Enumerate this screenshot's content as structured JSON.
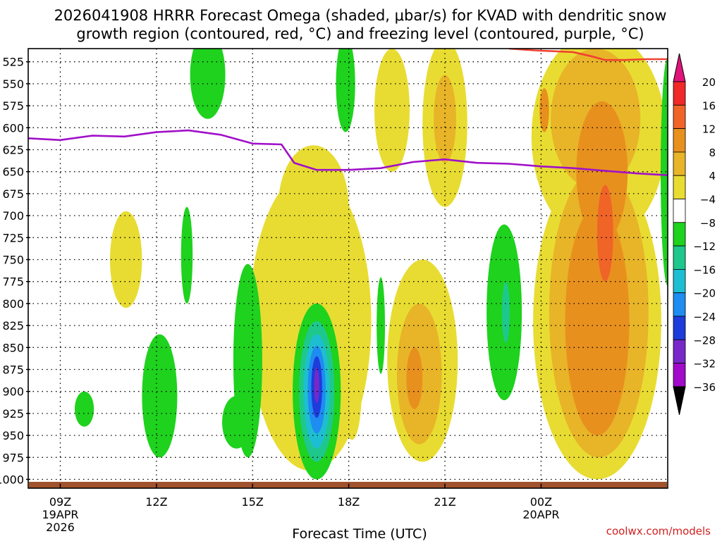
{
  "chart_data": {
    "type": "heatmap",
    "title_lines": [
      "2026041908 HRRR Forecast Omega (shaded, μbar/s) for KVAD with dendritic snow",
      "growth region (contoured, red, °C) and freezing level (contoured, purple, °C)"
    ],
    "xlabel": "Forecast Time (UTC)",
    "credit": "coolwx.com/models",
    "x_range_hours": [
      8.0,
      27.95
    ],
    "x_ticks": [
      {
        "hour": 9,
        "lines": [
          "09Z",
          "19APR",
          "2026"
        ]
      },
      {
        "hour": 12,
        "lines": [
          "12Z"
        ]
      },
      {
        "hour": 15,
        "lines": [
          "15Z"
        ]
      },
      {
        "hour": 18,
        "lines": [
          "18Z"
        ]
      },
      {
        "hour": 21,
        "lines": [
          "21Z"
        ]
      },
      {
        "hour": 24,
        "lines": [
          "00Z",
          "20APR"
        ]
      }
    ],
    "y_ticks_hpa": [
      525,
      550,
      575,
      600,
      625,
      650,
      675,
      700,
      725,
      750,
      775,
      800,
      825,
      850,
      875,
      900,
      925,
      950,
      975,
      1000
    ],
    "y_range_hpa": [
      510,
      1010
    ],
    "grid": true,
    "colorbar": {
      "levels": [
        20,
        16,
        12,
        8,
        4,
        -4,
        -8,
        -12,
        -16,
        -20,
        -24,
        -28,
        -32,
        -36
      ],
      "labels": [
        "20",
        "16",
        "12",
        "8",
        "4",
        "−4",
        "−8",
        "−12",
        "−16",
        "−20",
        "−24",
        "−28",
        "−32",
        "−36"
      ],
      "colors": [
        "#e0147a",
        "#f02828",
        "#f06428",
        "#e8901e",
        "#e8b428",
        "#e8dc32",
        "#ffffff",
        "#1ed21e",
        "#1ec88c",
        "#1ebed2",
        "#1e8cf0",
        "#1e3cdc",
        "#7828c8",
        "#a00ac8",
        "#aaaaaa",
        "#000000"
      ]
    },
    "omega_features": [
      {
        "name": "down-1100-high",
        "level": 4,
        "t": 11.05,
        "p": 750,
        "dt": 0.5,
        "dp": 55
      },
      {
        "name": "down-1930",
        "level": 4,
        "t": 19.35,
        "p": 580,
        "dt": 0.55,
        "dp": 70
      },
      {
        "name": "down-1700-plume",
        "level": 4,
        "t": 16.8,
        "p": 820,
        "dt": 1.9,
        "dp": 170
      },
      {
        "name": "down-1700-top",
        "level": 4,
        "t": 16.9,
        "p": 690,
        "dt": 1.1,
        "dp": 70
      },
      {
        "name": "down-1800",
        "level": 4,
        "t": 18.1,
        "p": 900,
        "dt": 0.3,
        "dp": 55
      },
      {
        "name": "down-2030",
        "level": 4,
        "t": 20.3,
        "p": 865,
        "dt": 1.1,
        "dp": 115
      },
      {
        "name": "down-2030-mid",
        "level": 8,
        "t": 20.2,
        "p": 880,
        "dt": 0.7,
        "dp": 80
      },
      {
        "name": "down-2030-core",
        "level": 12,
        "t": 20.05,
        "p": 885,
        "dt": 0.25,
        "dp": 35
      },
      {
        "name": "down-2100",
        "level": 4,
        "t": 21.0,
        "p": 595,
        "dt": 0.7,
        "dp": 95
      },
      {
        "name": "down-2100-core",
        "level": 8,
        "t": 21.0,
        "p": 590,
        "dt": 0.35,
        "dp": 50
      },
      {
        "name": "down-0030-upper",
        "level": 4,
        "t": 25.8,
        "p": 610,
        "dt": 2.1,
        "dp": 120
      },
      {
        "name": "down-0030-lower",
        "level": 4,
        "t": 25.75,
        "p": 820,
        "dt": 2.0,
        "dp": 180
      },
      {
        "name": "down-0030-lower-8",
        "level": 8,
        "t": 25.8,
        "p": 810,
        "dt": 1.55,
        "dp": 165
      },
      {
        "name": "down-0030-lower-12",
        "level": 12,
        "t": 25.75,
        "p": 820,
        "dt": 1.0,
        "dp": 130
      },
      {
        "name": "down-0030-upper-8",
        "level": 8,
        "t": 25.7,
        "p": 590,
        "dt": 1.4,
        "dp": 80
      },
      {
        "name": "down-0030-upper-12",
        "level": 12,
        "t": 25.9,
        "p": 650,
        "dt": 0.8,
        "dp": 80
      },
      {
        "name": "down-0100-core",
        "level": 16,
        "t": 26.0,
        "p": 720,
        "dt": 0.25,
        "dp": 55
      },
      {
        "name": "down-0000-small",
        "level": 12,
        "t": 24.1,
        "p": 580,
        "dt": 0.15,
        "dp": 25
      },
      {
        "name": "up-0945",
        "level": -4,
        "t": 9.75,
        "p": 920,
        "dt": 0.3,
        "dp": 20
      },
      {
        "name": "up-1200",
        "level": -4,
        "t": 12.1,
        "p": 905,
        "dt": 0.55,
        "dp": 70
      },
      {
        "name": "up-1400-top",
        "level": -4,
        "t": 13.6,
        "p": 540,
        "dt": 0.55,
        "dp": 50
      },
      {
        "name": "up-1300",
        "level": -4,
        "t": 12.95,
        "p": 745,
        "dt": 0.18,
        "dp": 55
      },
      {
        "name": "up-1500",
        "level": -4,
        "t": 14.85,
        "p": 865,
        "dt": 0.45,
        "dp": 110
      },
      {
        "name": "up-1500-base",
        "level": -4,
        "t": 14.5,
        "p": 935,
        "dt": 0.45,
        "dp": 30
      },
      {
        "name": "up-1700",
        "level": -4,
        "t": 17.0,
        "p": 900,
        "dt": 0.75,
        "dp": 100
      },
      {
        "name": "up-1700-8",
        "level": -8,
        "t": 17.0,
        "p": 900,
        "dt": 0.55,
        "dp": 80
      },
      {
        "name": "up-1700-12",
        "level": -12,
        "t": 17.0,
        "p": 900,
        "dt": 0.4,
        "dp": 65
      },
      {
        "name": "up-1700-16",
        "level": -16,
        "t": 17.0,
        "p": 898,
        "dt": 0.28,
        "dp": 50
      },
      {
        "name": "up-1700-20",
        "level": -20,
        "t": 17.0,
        "p": 895,
        "dt": 0.17,
        "dp": 35
      },
      {
        "name": "up-1700-24",
        "level": -24,
        "t": 17.0,
        "p": 893,
        "dt": 0.08,
        "dp": 20
      },
      {
        "name": "up-1800-top",
        "level": -4,
        "t": 17.9,
        "p": 550,
        "dt": 0.3,
        "dp": 55
      },
      {
        "name": "up-1900",
        "level": -4,
        "t": 19.0,
        "p": 825,
        "dt": 0.13,
        "dp": 55
      },
      {
        "name": "up-2330",
        "level": -4,
        "t": 22.85,
        "p": 810,
        "dt": 0.55,
        "dp": 100
      },
      {
        "name": "up-2330-8",
        "level": -8,
        "t": 22.9,
        "p": 810,
        "dt": 0.12,
        "dp": 35
      },
      {
        "name": "up-edge",
        "level": -4,
        "t": 27.95,
        "p": 650,
        "dt": 0.22,
        "dp": 130
      }
    ],
    "freezing_level_line": {
      "color": "#a010c8",
      "points": [
        [
          8,
          612
        ],
        [
          9,
          614
        ],
        [
          10,
          609
        ],
        [
          11,
          610
        ],
        [
          12,
          605
        ],
        [
          13,
          603
        ],
        [
          14,
          608
        ],
        [
          15,
          618
        ],
        [
          15.9,
          619
        ],
        [
          16.3,
          640
        ],
        [
          17,
          648
        ],
        [
          18,
          648
        ],
        [
          19,
          646
        ],
        [
          20,
          639
        ],
        [
          21,
          636
        ],
        [
          22,
          640
        ],
        [
          23,
          641
        ],
        [
          24,
          644
        ],
        [
          25,
          646
        ],
        [
          26,
          649
        ],
        [
          27,
          652
        ],
        [
          27.95,
          654
        ]
      ]
    },
    "dgz_line": {
      "color": "#f04030",
      "points": [
        [
          23.0,
          510
        ],
        [
          23.8,
          512
        ],
        [
          24.4,
          513
        ],
        [
          25,
          514
        ],
        [
          25.6,
          519
        ],
        [
          26,
          523
        ],
        [
          26.6,
          523
        ],
        [
          27.3,
          522
        ],
        [
          27.95,
          522
        ]
      ]
    }
  }
}
